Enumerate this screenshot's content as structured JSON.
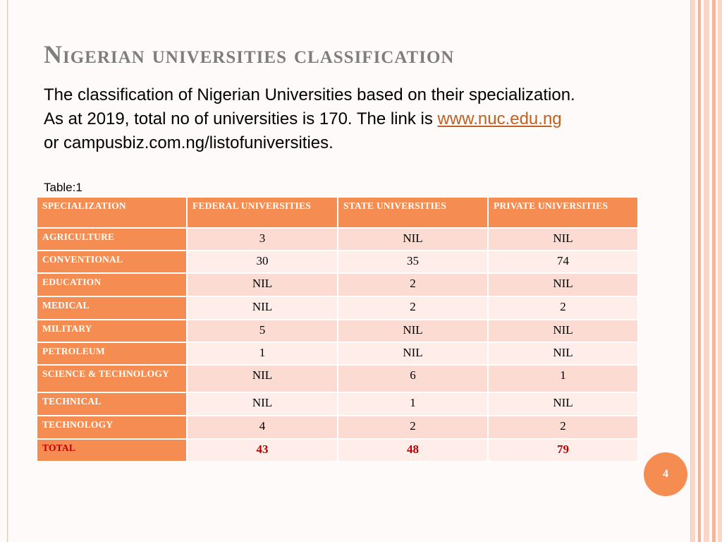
{
  "slide": {
    "title": "Nigerian universities classification",
    "body_lines": [
      "The classification of Nigerian Universities based on their specialization.",
      "As at 2019, total no of universities is 170. The link is ",
      "or campusbiz.com.ng/listofuniversities."
    ],
    "link_text": "www.nuc.edu.ng",
    "table_label": "Table:1",
    "page_number": "4"
  },
  "table": {
    "headers": [
      "SPECIALIZATION",
      "FEDERAL UNIVERSITIES",
      "STATE UNIVERSITIES",
      "PRIVATE UNIVERSITIES"
    ],
    "rows": [
      {
        "spec": "AGRICULTURE",
        "federal": "3",
        "state": "NIL",
        "private": "NIL"
      },
      {
        "spec": "CONVENTIONAL",
        "federal": "30",
        "state": "35",
        "private": "74"
      },
      {
        "spec": "EDUCATION",
        "federal": "NIL",
        "state": "2",
        "private": "NIL"
      },
      {
        "spec": "MEDICAL",
        "federal": "NIL",
        "state": "2",
        "private": "2"
      },
      {
        "spec": "MILITARY",
        "federal": "5",
        "state": "NIL",
        "private": "NIL"
      },
      {
        "spec": "PETROLEUM",
        "federal": "1",
        "state": "NIL",
        "private": "NIL"
      },
      {
        "spec": "SCIENCE & TECHNOLOGY",
        "federal": "NIL",
        "state": "6",
        "private": "1"
      },
      {
        "spec": "TECHNICAL",
        "federal": "NIL",
        "state": "1",
        "private": "NIL"
      },
      {
        "spec": "TECHNOLOGY",
        "federal": "4",
        "state": "2",
        "private": "2"
      }
    ],
    "total": {
      "spec": "TOTAL",
      "federal": "43",
      "state": "48",
      "private": "79"
    }
  },
  "colors": {
    "accent_orange": "#f58d53",
    "title_gray": "#7d7d7d",
    "row_odd": "#fcdcd2",
    "row_even": "#feede8",
    "total_red": "#c00000",
    "link_color": "#c0611f",
    "stripe_light": "#fbd7c8",
    "stripe_mid": "#f7b49a"
  }
}
